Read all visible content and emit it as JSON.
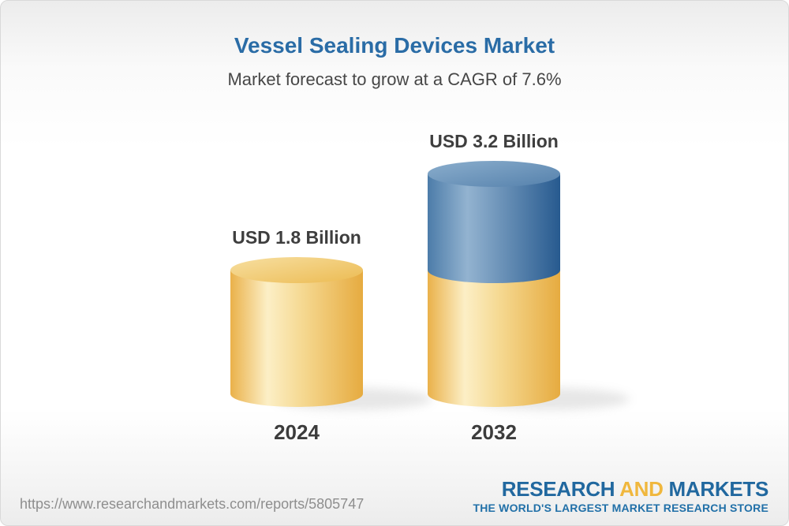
{
  "header": {
    "title": "Vessel Sealing Devices Market",
    "subtitle": "Market forecast to grow at a CAGR of 7.6%"
  },
  "chart_data": {
    "type": "bar",
    "variant": "3d-cylinder-stacked",
    "title": "Vessel Sealing Devices Market",
    "subtitle": "Market forecast to grow at a CAGR of 7.6%",
    "cagr_percent": 7.6,
    "unit": "USD Billion",
    "categories": [
      "2024",
      "2032"
    ],
    "values": [
      1.8,
      3.2
    ],
    "value_labels": [
      "USD 1.8 Billion",
      "USD 3.2 Billion"
    ],
    "axes_visible": false,
    "grid": false,
    "legend": false,
    "colors": {
      "base_segment": "#F2C260",
      "growth_segment": "#4678A6",
      "label_text": "#3E3E3E",
      "title_text": "#2A6CA6"
    },
    "style": {
      "base_body_gradient": [
        [
          "0",
          "#EAB14A"
        ],
        [
          "0.28",
          "#FCEFC6"
        ],
        [
          "0.55",
          "#F5D890"
        ],
        [
          "1",
          "#E6AB40"
        ]
      ],
      "base_top_gradient": [
        [
          "0",
          "#F7DFA1"
        ],
        [
          "1",
          "#ECBB52"
        ]
      ],
      "growth_body_gradient": [
        [
          "0",
          "#4C7CA9"
        ],
        [
          "0.3",
          "#93B3D0"
        ],
        [
          "1",
          "#275A8F"
        ]
      ],
      "growth_top_gradient": [
        [
          "0",
          "#8BAECD"
        ],
        [
          "1",
          "#5581AC"
        ]
      ],
      "shadow_color": "#9A9A9A"
    }
  },
  "footer": {
    "url": "https://www.researchandmarkets.com/reports/5805747",
    "logo": {
      "word1": "RESEARCH",
      "word2": "AND",
      "word3": "MARKETS",
      "tagline": "THE WORLD'S LARGEST MARKET RESEARCH STORE"
    }
  }
}
